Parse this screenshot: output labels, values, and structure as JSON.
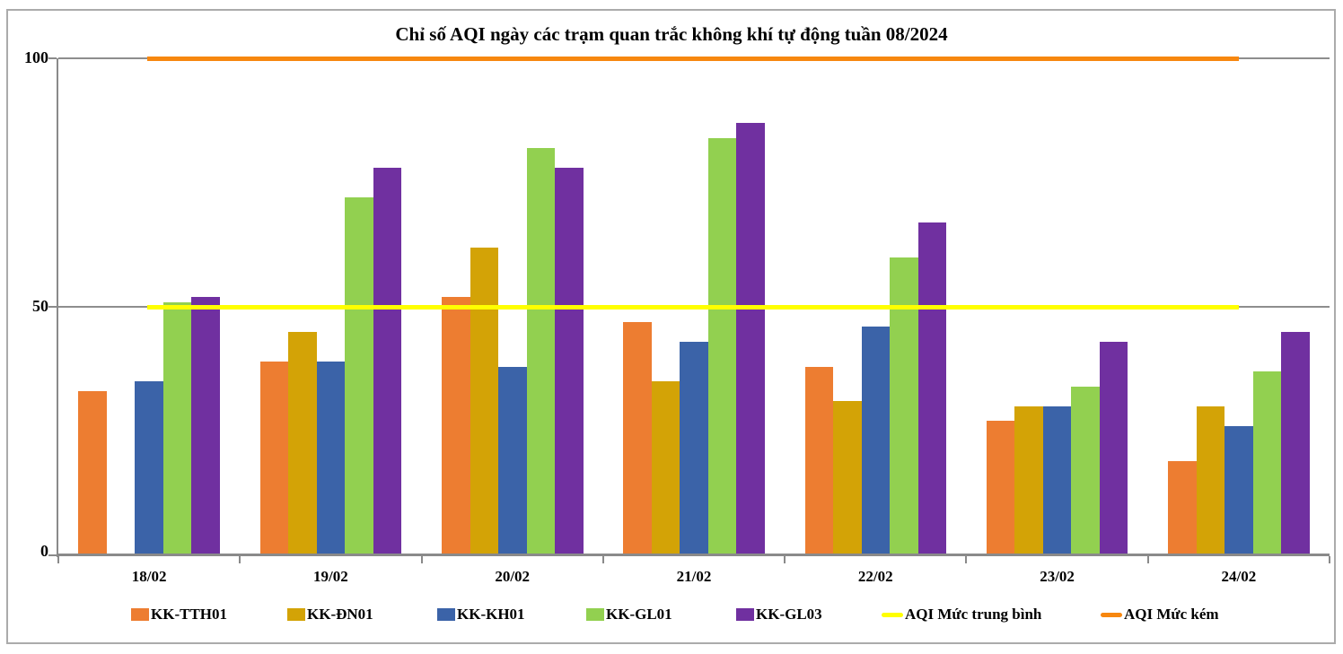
{
  "chart_data": {
    "type": "bar",
    "title": "Chỉ số AQI ngày các trạm quan trắc không khí tự động tuần 08/2024",
    "xlabel": "",
    "ylabel": "",
    "categories": [
      "18/02",
      "19/02",
      "20/02",
      "21/02",
      "22/02",
      "23/02",
      "24/02"
    ],
    "series": [
      {
        "name": "KK-TTH01",
        "color": "#ED7D31",
        "values": [
          33,
          39,
          52,
          47,
          38,
          27,
          19
        ]
      },
      {
        "name": "KK-ĐN01",
        "color": "#D3A306",
        "values": [
          null,
          45,
          62,
          35,
          31,
          30,
          30
        ]
      },
      {
        "name": "KK-KH01",
        "color": "#3B63A8",
        "values": [
          35,
          39,
          38,
          43,
          46,
          30,
          26
        ]
      },
      {
        "name": "KK-GL01",
        "color": "#92D050",
        "values": [
          51,
          72,
          82,
          84,
          60,
          34,
          37
        ]
      },
      {
        "name": "KK-GL03",
        "color": "#7030A0",
        "values": [
          52,
          78,
          78,
          87,
          67,
          43,
          45
        ]
      }
    ],
    "ref_lines": [
      {
        "name": "AQI Mức trung bình",
        "color": "#FFFF00",
        "value": 50
      },
      {
        "name": "AQI Mức kém",
        "color": "#F7870F",
        "value": 100
      }
    ],
    "ylim": [
      0,
      100
    ],
    "yticks": [
      0,
      50,
      100
    ],
    "grid": true,
    "legend_position": "bottom",
    "colors": {
      "grid": "#8e8e8e",
      "axis": "#8a8a8a",
      "border": "#ababab",
      "background": "#ffffff"
    }
  }
}
